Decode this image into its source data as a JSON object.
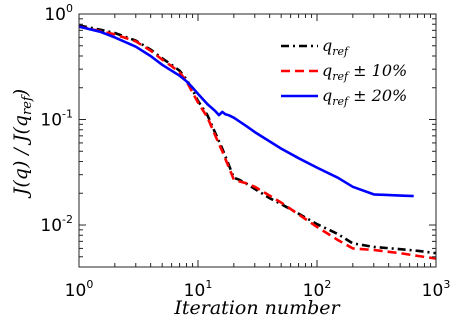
{
  "chart_data": {
    "type": "line",
    "x_scale": "log",
    "y_scale": "log",
    "xlim": [
      1,
      1000
    ],
    "ylim": [
      0.004,
      1
    ],
    "xlabel": "Iteration number",
    "ylabel": "J(q) / J(q_ref)",
    "grid": false,
    "legend_position": "top-right",
    "x_ticks": [
      {
        "base": "10",
        "exp": "0"
      },
      {
        "base": "10",
        "exp": "1"
      },
      {
        "base": "10",
        "exp": "2"
      },
      {
        "base": "10",
        "exp": "3"
      }
    ],
    "y_ticks": [
      {
        "base": "10",
        "exp": "0"
      },
      {
        "base": "10",
        "exp": "-1"
      },
      {
        "base": "10",
        "exp": "-2"
      }
    ],
    "legend": [
      {
        "main": "q",
        "sub": "ref",
        "suffix": ""
      },
      {
        "main": "q",
        "sub": "ref",
        "suffix": " ± 10%"
      },
      {
        "main": "q",
        "sub": "ref",
        "suffix": " ± 20%"
      }
    ],
    "series": [
      {
        "color": "#000000",
        "style": "dashdot",
        "x": [
          1,
          1.5,
          2,
          3,
          4,
          5,
          6,
          7,
          8,
          9,
          10,
          12,
          14,
          16,
          18,
          20,
          22,
          25,
          30,
          40,
          50,
          70,
          100,
          150,
          200,
          300,
          500,
          700,
          1000
        ],
        "y": [
          0.78,
          0.71,
          0.66,
          0.56,
          0.46,
          0.38,
          0.33,
          0.29,
          0.24,
          0.19,
          0.15,
          0.11,
          0.074,
          0.053,
          0.038,
          0.028,
          0.027,
          0.025,
          0.022,
          0.018,
          0.0158,
          0.0128,
          0.0102,
          0.0082,
          0.0067,
          0.0062,
          0.0059,
          0.0057,
          0.0054
        ]
      },
      {
        "color": "#ff0000",
        "style": "dashed",
        "x": [
          1,
          1.5,
          2,
          3,
          4,
          5,
          6,
          7,
          8,
          9,
          10,
          12,
          14,
          16,
          18,
          20,
          22,
          25,
          30,
          40,
          50,
          70,
          100,
          150,
          200,
          300,
          500,
          700,
          1000
        ],
        "y": [
          0.76,
          0.69,
          0.64,
          0.55,
          0.45,
          0.37,
          0.32,
          0.28,
          0.23,
          0.18,
          0.145,
          0.105,
          0.07,
          0.05,
          0.036,
          0.027,
          0.026,
          0.025,
          0.023,
          0.019,
          0.0163,
          0.0126,
          0.0096,
          0.0072,
          0.006,
          0.0058,
          0.0054,
          0.0051,
          0.0048
        ]
      },
      {
        "color": "#0000ff",
        "style": "solid",
        "x": [
          1,
          1.5,
          2,
          3,
          4,
          5,
          6,
          7,
          8,
          9,
          10,
          12,
          14,
          15,
          16,
          17,
          18,
          20,
          25,
          30,
          40,
          50,
          70,
          100,
          150,
          200,
          300,
          500,
          650
        ],
        "y": [
          0.76,
          0.68,
          0.6,
          0.49,
          0.4,
          0.33,
          0.29,
          0.26,
          0.23,
          0.2,
          0.175,
          0.14,
          0.12,
          0.11,
          0.118,
          0.112,
          0.11,
          0.104,
          0.088,
          0.076,
          0.062,
          0.053,
          0.043,
          0.035,
          0.028,
          0.023,
          0.0195,
          0.019,
          0.0188
        ]
      }
    ]
  }
}
